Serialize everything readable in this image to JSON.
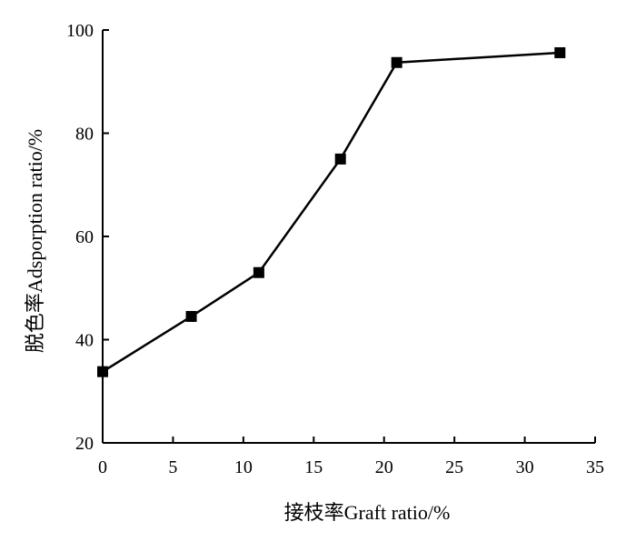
{
  "chart_data": {
    "type": "line",
    "title": "",
    "xlabel": "接枝率Graft ratio/%",
    "ylabel": "脱色率Adsporption ratio/%",
    "xlim": [
      0,
      35
    ],
    "ylim": [
      20,
      100
    ],
    "xticks": [
      0,
      5,
      10,
      15,
      20,
      25,
      30,
      35
    ],
    "yticks": [
      20,
      40,
      60,
      80,
      100
    ],
    "grid": false,
    "legend": "none",
    "marker": "square",
    "color": "#000000",
    "series": [
      {
        "x": [
          0,
          6.3,
          11.1,
          16.9,
          20.9,
          32.5
        ],
        "y": [
          33.8,
          44.5,
          53.0,
          75.0,
          93.7,
          95.6
        ]
      }
    ]
  }
}
